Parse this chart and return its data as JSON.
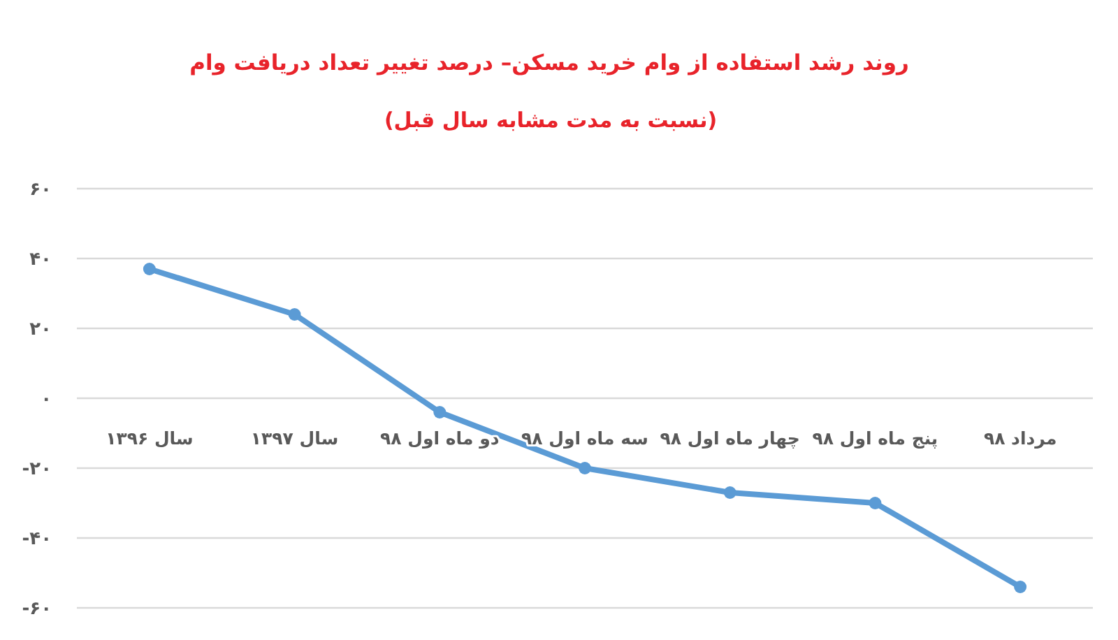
{
  "chart_data": {
    "type": "line",
    "title": "روند رشد استفاده از وام خرید مسکن– درصد تغییر تعداد دریافت وام",
    "subtitle": "(نسبت به مدت مشابه سال قبل)",
    "categories": [
      "سال ۱۳۹۶",
      "سال ۱۳۹۷",
      "دو ماه اول ۹۸",
      "سه ماه اول ۹۸",
      "چهار ماه اول ۹۸",
      "پنج ماه اول ۹۸",
      "مرداد ۹۸"
    ],
    "values": [
      37,
      24,
      -4,
      -20,
      -27,
      -30,
      -54
    ],
    "color": "#5b9bd5",
    "ylim": [
      -60,
      60
    ],
    "yticks": [
      {
        "value": -60,
        "label": "-۶۰"
      },
      {
        "value": -40,
        "label": "-۴۰"
      },
      {
        "value": -20,
        "label": "-۲۰"
      },
      {
        "value": 0,
        "label": "۰"
      },
      {
        "value": 20,
        "label": "۲۰"
      },
      {
        "value": 40,
        "label": "۴۰"
      },
      {
        "value": 60,
        "label": "۶۰"
      }
    ],
    "grid": "y",
    "marker": "circle"
  }
}
